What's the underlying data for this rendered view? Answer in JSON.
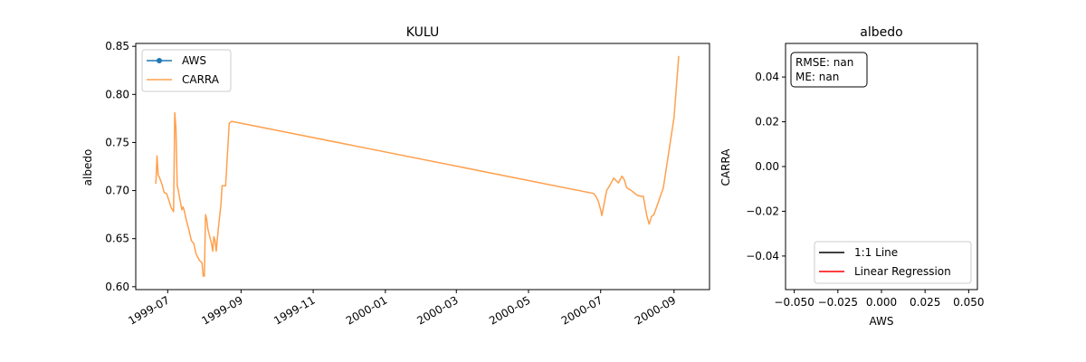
{
  "chart_data": [
    {
      "type": "line",
      "title": "KULU",
      "xlabel": "",
      "ylabel": "albedo",
      "x_type": "date",
      "xlim": [
        "1999-06-04",
        "2000-10-01"
      ],
      "ylim": [
        0.597,
        0.853
      ],
      "x_ticks": [
        "1999-07-01",
        "1999-09-01",
        "1999-11-01",
        "2000-01-01",
        "2000-03-01",
        "2000-05-01",
        "2000-07-01",
        "2000-09-01"
      ],
      "x_tick_labels": [
        "1999-07",
        "1999-09",
        "1999-11",
        "2000-01",
        "2000-03",
        "2000-05",
        "2000-07",
        "2000-09"
      ],
      "y_ticks": [
        0.6,
        0.65,
        0.7,
        0.75,
        0.8,
        0.85
      ],
      "y_tick_labels": [
        "0.60",
        "0.65",
        "0.70",
        "0.75",
        "0.80",
        "0.85"
      ],
      "legend": {
        "position": "upper-left",
        "entries": [
          "AWS",
          "CARRA"
        ]
      },
      "grid": false,
      "series": [
        {
          "name": "AWS",
          "color": "#1f77b4",
          "marker": "circle",
          "points": []
        },
        {
          "name": "CARRA",
          "color": "#ffa04d",
          "points": [
            [
              "1999-06-21",
              0.707
            ],
            [
              "1999-06-22",
              0.736
            ],
            [
              "1999-06-23",
              0.716
            ],
            [
              "1999-06-24",
              0.714
            ],
            [
              "1999-06-26",
              0.707
            ],
            [
              "1999-06-28",
              0.698
            ],
            [
              "1999-06-30",
              0.697
            ],
            [
              "1999-07-02",
              0.69
            ],
            [
              "1999-07-04",
              0.682
            ],
            [
              "1999-07-06",
              0.678
            ],
            [
              "1999-07-07",
              0.781
            ],
            [
              "1999-07-08",
              0.765
            ],
            [
              "1999-07-09",
              0.706
            ],
            [
              "1999-07-11",
              0.693
            ],
            [
              "1999-07-13",
              0.68
            ],
            [
              "1999-07-14",
              0.683
            ],
            [
              "1999-07-15",
              0.679
            ],
            [
              "1999-07-17",
              0.668
            ],
            [
              "1999-07-19",
              0.659
            ],
            [
              "1999-07-21",
              0.648
            ],
            [
              "1999-07-23",
              0.645
            ],
            [
              "1999-07-25",
              0.634
            ],
            [
              "1999-07-28",
              0.627
            ],
            [
              "1999-07-30",
              0.625
            ],
            [
              "1999-07-31",
              0.611
            ],
            [
              "1999-08-01",
              0.611
            ],
            [
              "1999-08-02",
              0.675
            ],
            [
              "1999-08-03",
              0.67
            ],
            [
              "1999-08-04",
              0.66
            ],
            [
              "1999-08-05",
              0.655
            ],
            [
              "1999-08-07",
              0.645
            ],
            [
              "1999-08-08",
              0.637
            ],
            [
              "1999-08-09",
              0.652
            ],
            [
              "1999-08-10",
              0.648
            ],
            [
              "1999-08-11",
              0.637
            ],
            [
              "1999-08-13",
              0.663
            ],
            [
              "1999-08-15",
              0.685
            ],
            [
              "1999-08-16",
              0.705
            ],
            [
              "1999-08-19",
              0.705
            ],
            [
              "1999-08-22",
              0.77
            ],
            [
              "1999-08-24",
              0.772
            ],
            [
              "1999-08-28",
              0.771
            ],
            [
              "2000-06-25",
              0.697
            ],
            [
              "2000-06-27",
              0.694
            ],
            [
              "2000-06-29",
              0.689
            ],
            [
              "2000-07-01",
              0.68
            ],
            [
              "2000-07-02",
              0.674
            ],
            [
              "2000-07-06",
              0.7
            ],
            [
              "2000-07-09",
              0.706
            ],
            [
              "2000-07-12",
              0.713
            ],
            [
              "2000-07-16",
              0.708
            ],
            [
              "2000-07-19",
              0.715
            ],
            [
              "2000-07-21",
              0.711
            ],
            [
              "2000-07-23",
              0.703
            ],
            [
              "2000-07-27",
              0.7
            ],
            [
              "2000-07-30",
              0.697
            ],
            [
              "2000-08-01",
              0.695
            ],
            [
              "2000-08-04",
              0.694
            ],
            [
              "2000-08-06",
              0.694
            ],
            [
              "2000-08-09",
              0.674
            ],
            [
              "2000-08-11",
              0.665
            ],
            [
              "2000-08-13",
              0.673
            ],
            [
              "2000-08-15",
              0.675
            ],
            [
              "2000-08-19",
              0.689
            ],
            [
              "2000-08-23",
              0.703
            ],
            [
              "2000-09-01",
              0.776
            ],
            [
              "2000-09-05",
              0.84
            ]
          ]
        }
      ]
    },
    {
      "type": "scatter",
      "title": "albedo",
      "xlabel": "AWS",
      "ylabel": "CARRA",
      "xlim": [
        -0.055,
        0.055
      ],
      "ylim": [
        -0.055,
        0.055
      ],
      "x_ticks": [
        -0.05,
        -0.025,
        0.0,
        0.025,
        0.05
      ],
      "x_tick_labels": [
        "−0.050",
        "−0.025",
        "0.000",
        "0.025",
        "0.050"
      ],
      "y_ticks": [
        -0.04,
        -0.02,
        0.0,
        0.02,
        0.04
      ],
      "y_tick_labels": [
        "−0.04",
        "−0.02",
        "0.00",
        "0.02",
        "0.04"
      ],
      "annotation": [
        "RMSE: nan",
        "ME: nan"
      ],
      "legend": {
        "position": "lower-right",
        "entries": [
          "1:1 Line",
          "Linear Regression"
        ]
      },
      "series": [
        {
          "name": "1:1 Line",
          "color": "#000000",
          "points": []
        },
        {
          "name": "Linear Regression",
          "color": "#ff0000",
          "points": []
        }
      ],
      "grid": false
    }
  ]
}
